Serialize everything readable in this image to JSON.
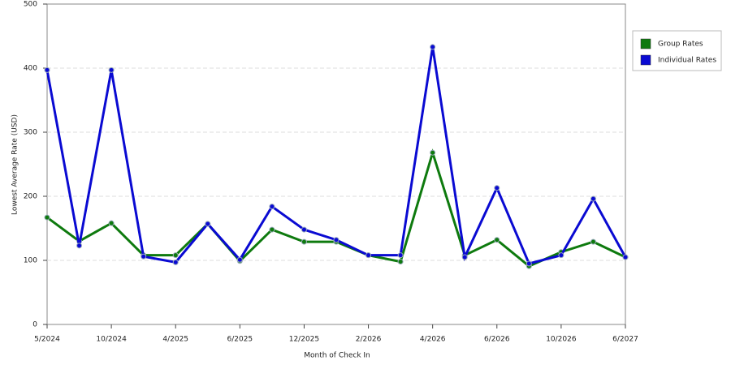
{
  "chart_data": {
    "type": "line",
    "x_label": "Month of Check In",
    "y_label": "Lowest Average Rate (USD)",
    "categories": [
      "5/2024",
      null,
      "10/2024",
      null,
      "4/2025",
      null,
      "6/2025",
      null,
      "12/2025",
      null,
      "2/2026",
      null,
      "4/2026",
      null,
      "6/2026",
      null,
      "10/2026",
      null,
      "6/2027"
    ],
    "series": [
      {
        "name": "Group Rates",
        "color": "#0e7a0e",
        "values": [
          167,
          130,
          158,
          108,
          108,
          157,
          99,
          148,
          129,
          129,
          108,
          98,
          268,
          108,
          132,
          91,
          113,
          129,
          105
        ]
      },
      {
        "name": "Individual Rates",
        "color": "#0a0ad2",
        "values": [
          397,
          123,
          397,
          106,
          97,
          157,
          101,
          184,
          148,
          132,
          108,
          108,
          433,
          105,
          213,
          95,
          108,
          196,
          105
        ]
      }
    ],
    "ylim": [
      0,
      500
    ],
    "yticks": [
      0,
      100,
      200,
      300,
      400,
      500
    ],
    "grid": true,
    "legend": "right"
  }
}
